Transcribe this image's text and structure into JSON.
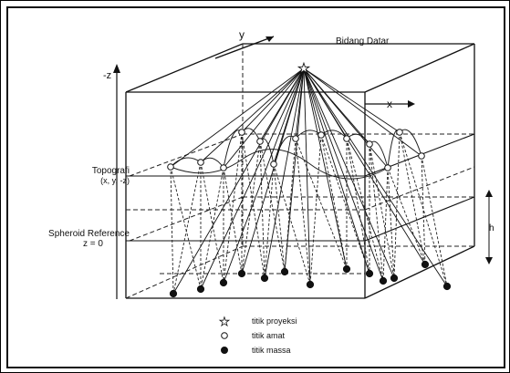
{
  "labels": {
    "y_axis": "y",
    "x_axis": "x",
    "neg_z": "-z",
    "bidang_datar": "Bidang Datar",
    "topografi_line1": "Topografi",
    "topografi_line2": "(x, y, -z)",
    "spheroid_line1": "Spheroid Reference",
    "spheroid_line2": "z = 0",
    "h": "h"
  },
  "legend": [
    {
      "symbol": "star",
      "label": "titik proyeksi"
    },
    {
      "symbol": "open-circle",
      "label": "titik amat"
    },
    {
      "symbol": "filled-circle",
      "label": "titik massa"
    }
  ]
}
